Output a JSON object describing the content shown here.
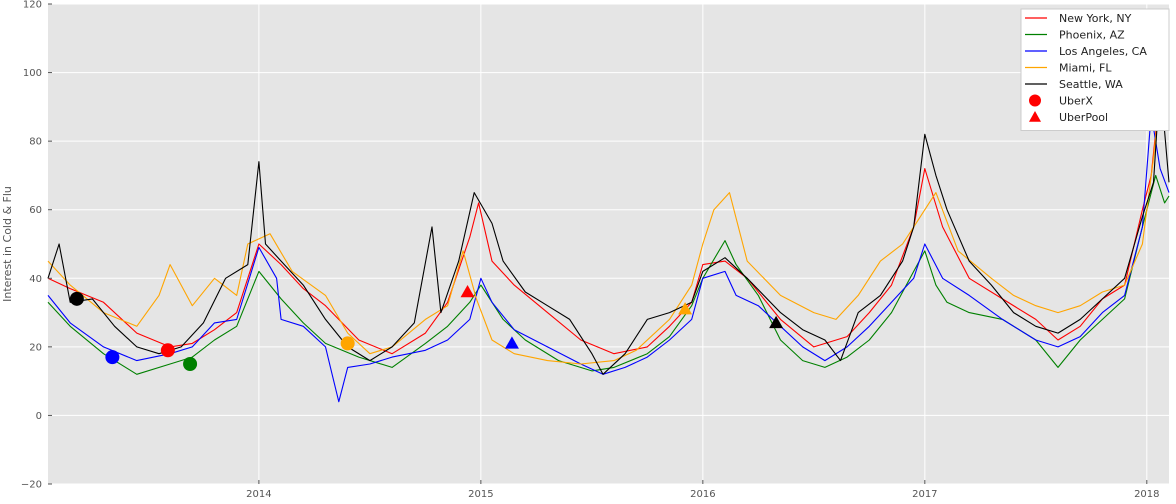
{
  "chart_data": {
    "type": "line",
    "title": "",
    "xlabel": "",
    "ylabel": "Interest in Cold & Flu",
    "xlim": [
      2013.05,
      2018.1
    ],
    "ylim": [
      -20,
      120
    ],
    "x_ticks": [
      2014,
      2015,
      2016,
      2017,
      2018
    ],
    "x_tick_labels": [
      "2014",
      "2015",
      "2016",
      "2017",
      "2018"
    ],
    "y_ticks": [
      -20,
      0,
      20,
      40,
      60,
      80,
      100,
      120
    ],
    "y_tick_labels": [
      "−20",
      "0",
      "20",
      "40",
      "60",
      "80",
      "100",
      "120"
    ],
    "grid": true,
    "legend_position": "top-right",
    "series": [
      {
        "name": "New York, NY",
        "color": "#ff0000",
        "points": [
          [
            2013.05,
            40
          ],
          [
            2013.15,
            37
          ],
          [
            2013.3,
            33
          ],
          [
            2013.45,
            24
          ],
          [
            2013.6,
            20
          ],
          [
            2013.7,
            21
          ],
          [
            2013.8,
            25
          ],
          [
            2013.9,
            30
          ],
          [
            2014.0,
            50
          ],
          [
            2014.1,
            44
          ],
          [
            2014.2,
            37
          ],
          [
            2014.3,
            32
          ],
          [
            2014.45,
            22
          ],
          [
            2014.6,
            18
          ],
          [
            2014.75,
            24
          ],
          [
            2014.85,
            33
          ],
          [
            2014.95,
            52
          ],
          [
            2014.99,
            62
          ],
          [
            2015.05,
            45
          ],
          [
            2015.15,
            38
          ],
          [
            2015.3,
            30
          ],
          [
            2015.45,
            22
          ],
          [
            2015.6,
            18
          ],
          [
            2015.75,
            20
          ],
          [
            2015.85,
            26
          ],
          [
            2015.95,
            33
          ],
          [
            2016.0,
            44
          ],
          [
            2016.1,
            45
          ],
          [
            2016.2,
            40
          ],
          [
            2016.35,
            28
          ],
          [
            2016.5,
            20
          ],
          [
            2016.65,
            23
          ],
          [
            2016.75,
            30
          ],
          [
            2016.85,
            38
          ],
          [
            2016.95,
            55
          ],
          [
            2017.0,
            72
          ],
          [
            2017.08,
            55
          ],
          [
            2017.2,
            40
          ],
          [
            2017.35,
            34
          ],
          [
            2017.5,
            28
          ],
          [
            2017.6,
            22
          ],
          [
            2017.7,
            26
          ],
          [
            2017.8,
            34
          ],
          [
            2017.9,
            38
          ],
          [
            2017.98,
            60
          ],
          [
            2018.02,
            70
          ],
          [
            2018.06,
            95
          ],
          [
            2018.1,
            100
          ]
        ]
      },
      {
        "name": "Phoenix, AZ",
        "color": "#008000",
        "points": [
          [
            2013.05,
            33
          ],
          [
            2013.15,
            26
          ],
          [
            2013.3,
            18
          ],
          [
            2013.45,
            12
          ],
          [
            2013.6,
            15
          ],
          [
            2013.7,
            17
          ],
          [
            2013.8,
            22
          ],
          [
            2013.9,
            26
          ],
          [
            2014.0,
            42
          ],
          [
            2014.1,
            34
          ],
          [
            2014.2,
            27
          ],
          [
            2014.3,
            21
          ],
          [
            2014.45,
            17
          ],
          [
            2014.6,
            14
          ],
          [
            2014.75,
            21
          ],
          [
            2014.85,
            26
          ],
          [
            2014.95,
            33
          ],
          [
            2015.0,
            38
          ],
          [
            2015.1,
            28
          ],
          [
            2015.2,
            22
          ],
          [
            2015.35,
            16
          ],
          [
            2015.5,
            13
          ],
          [
            2015.6,
            14
          ],
          [
            2015.75,
            18
          ],
          [
            2015.85,
            23
          ],
          [
            2015.95,
            32
          ],
          [
            2016.0,
            40
          ],
          [
            2016.1,
            51
          ],
          [
            2016.15,
            44
          ],
          [
            2016.25,
            35
          ],
          [
            2016.35,
            22
          ],
          [
            2016.45,
            16
          ],
          [
            2016.55,
            14
          ],
          [
            2016.65,
            17
          ],
          [
            2016.75,
            22
          ],
          [
            2016.85,
            30
          ],
          [
            2016.95,
            42
          ],
          [
            2017.0,
            48
          ],
          [
            2017.05,
            38
          ],
          [
            2017.1,
            33
          ],
          [
            2017.2,
            30
          ],
          [
            2017.35,
            28
          ],
          [
            2017.5,
            22
          ],
          [
            2017.6,
            14
          ],
          [
            2017.7,
            22
          ],
          [
            2017.8,
            28
          ],
          [
            2017.9,
            34
          ],
          [
            2017.98,
            55
          ],
          [
            2018.04,
            70
          ],
          [
            2018.08,
            62
          ],
          [
            2018.1,
            64
          ]
        ]
      },
      {
        "name": "Los Angeles, CA",
        "color": "#0000ff",
        "points": [
          [
            2013.05,
            35
          ],
          [
            2013.15,
            27
          ],
          [
            2013.3,
            20
          ],
          [
            2013.45,
            16
          ],
          [
            2013.6,
            18
          ],
          [
            2013.7,
            20
          ],
          [
            2013.8,
            27
          ],
          [
            2013.9,
            28
          ],
          [
            2014.0,
            49
          ],
          [
            2014.08,
            40
          ],
          [
            2014.1,
            28
          ],
          [
            2014.2,
            26
          ],
          [
            2014.3,
            20
          ],
          [
            2014.33,
            12
          ],
          [
            2014.36,
            4
          ],
          [
            2014.4,
            14
          ],
          [
            2014.5,
            15
          ],
          [
            2014.6,
            17
          ],
          [
            2014.75,
            19
          ],
          [
            2014.85,
            22
          ],
          [
            2014.95,
            28
          ],
          [
            2015.0,
            40
          ],
          [
            2015.05,
            33
          ],
          [
            2015.15,
            25
          ],
          [
            2015.3,
            20
          ],
          [
            2015.45,
            15
          ],
          [
            2015.55,
            12
          ],
          [
            2015.65,
            14
          ],
          [
            2015.75,
            17
          ],
          [
            2015.85,
            22
          ],
          [
            2015.95,
            28
          ],
          [
            2016.0,
            40
          ],
          [
            2016.1,
            42
          ],
          [
            2016.15,
            35
          ],
          [
            2016.25,
            32
          ],
          [
            2016.35,
            26
          ],
          [
            2016.45,
            20
          ],
          [
            2016.55,
            16
          ],
          [
            2016.65,
            20
          ],
          [
            2016.75,
            26
          ],
          [
            2016.85,
            33
          ],
          [
            2016.95,
            40
          ],
          [
            2017.0,
            50
          ],
          [
            2017.08,
            40
          ],
          [
            2017.2,
            35
          ],
          [
            2017.35,
            28
          ],
          [
            2017.5,
            22
          ],
          [
            2017.6,
            20
          ],
          [
            2017.7,
            23
          ],
          [
            2017.8,
            30
          ],
          [
            2017.9,
            35
          ],
          [
            2017.98,
            55
          ],
          [
            2018.02,
            88
          ],
          [
            2018.06,
            72
          ],
          [
            2018.1,
            65
          ]
        ]
      },
      {
        "name": "Miami, FL",
        "color": "#ffa500",
        "points": [
          [
            2013.05,
            45
          ],
          [
            2013.15,
            38
          ],
          [
            2013.3,
            30
          ],
          [
            2013.45,
            26
          ],
          [
            2013.55,
            35
          ],
          [
            2013.6,
            44
          ],
          [
            2013.7,
            32
          ],
          [
            2013.8,
            40
          ],
          [
            2013.9,
            35
          ],
          [
            2013.95,
            50
          ],
          [
            2014.05,
            53
          ],
          [
            2014.15,
            42
          ],
          [
            2014.3,
            35
          ],
          [
            2014.4,
            24
          ],
          [
            2014.5,
            18
          ],
          [
            2014.6,
            20
          ],
          [
            2014.75,
            28
          ],
          [
            2014.85,
            32
          ],
          [
            2014.92,
            48
          ],
          [
            2014.98,
            34
          ],
          [
            2015.05,
            22
          ],
          [
            2015.15,
            18
          ],
          [
            2015.3,
            16
          ],
          [
            2015.45,
            15
          ],
          [
            2015.6,
            16
          ],
          [
            2015.7,
            19
          ],
          [
            2015.85,
            28
          ],
          [
            2015.95,
            38
          ],
          [
            2016.0,
            50
          ],
          [
            2016.05,
            60
          ],
          [
            2016.12,
            65
          ],
          [
            2016.2,
            45
          ],
          [
            2016.35,
            35
          ],
          [
            2016.5,
            30
          ],
          [
            2016.6,
            28
          ],
          [
            2016.7,
            35
          ],
          [
            2016.8,
            45
          ],
          [
            2016.9,
            50
          ],
          [
            2016.95,
            55
          ],
          [
            2017.05,
            65
          ],
          [
            2017.15,
            48
          ],
          [
            2017.3,
            40
          ],
          [
            2017.4,
            35
          ],
          [
            2017.5,
            32
          ],
          [
            2017.6,
            30
          ],
          [
            2017.7,
            32
          ],
          [
            2017.8,
            36
          ],
          [
            2017.9,
            38
          ],
          [
            2017.98,
            50
          ],
          [
            2018.03,
            75
          ],
          [
            2018.07,
            100
          ],
          [
            2018.1,
            100
          ]
        ]
      },
      {
        "name": "Seattle, WA",
        "color": "#000000",
        "points": [
          [
            2013.05,
            40
          ],
          [
            2013.1,
            50
          ],
          [
            2013.15,
            33
          ],
          [
            2013.25,
            34
          ],
          [
            2013.35,
            26
          ],
          [
            2013.45,
            20
          ],
          [
            2013.55,
            18
          ],
          [
            2013.65,
            20
          ],
          [
            2013.75,
            27
          ],
          [
            2013.85,
            40
          ],
          [
            2013.95,
            44
          ],
          [
            2014.0,
            74
          ],
          [
            2014.03,
            50
          ],
          [
            2014.1,
            45
          ],
          [
            2014.2,
            38
          ],
          [
            2014.3,
            28
          ],
          [
            2014.4,
            20
          ],
          [
            2014.5,
            16
          ],
          [
            2014.6,
            20
          ],
          [
            2014.7,
            27
          ],
          [
            2014.78,
            55
          ],
          [
            2014.82,
            30
          ],
          [
            2014.9,
            45
          ],
          [
            2014.97,
            65
          ],
          [
            2015.05,
            56
          ],
          [
            2015.1,
            45
          ],
          [
            2015.2,
            36
          ],
          [
            2015.3,
            32
          ],
          [
            2015.4,
            28
          ],
          [
            2015.5,
            18
          ],
          [
            2015.55,
            12
          ],
          [
            2015.65,
            18
          ],
          [
            2015.75,
            28
          ],
          [
            2015.85,
            30
          ],
          [
            2015.95,
            33
          ],
          [
            2016.0,
            42
          ],
          [
            2016.1,
            46
          ],
          [
            2016.2,
            40
          ],
          [
            2016.35,
            30
          ],
          [
            2016.45,
            25
          ],
          [
            2016.55,
            22
          ],
          [
            2016.62,
            16
          ],
          [
            2016.7,
            30
          ],
          [
            2016.8,
            35
          ],
          [
            2016.9,
            45
          ],
          [
            2016.95,
            55
          ],
          [
            2017.0,
            82
          ],
          [
            2017.05,
            70
          ],
          [
            2017.1,
            60
          ],
          [
            2017.2,
            45
          ],
          [
            2017.3,
            38
          ],
          [
            2017.4,
            30
          ],
          [
            2017.5,
            26
          ],
          [
            2017.6,
            24
          ],
          [
            2017.7,
            28
          ],
          [
            2017.8,
            34
          ],
          [
            2017.9,
            40
          ],
          [
            2017.98,
            58
          ],
          [
            2018.03,
            68
          ],
          [
            2018.06,
            98
          ],
          [
            2018.1,
            68
          ]
        ]
      }
    ],
    "markers": [
      {
        "kind": "UberX",
        "shape": "circle",
        "x": 2013.18,
        "y": 34,
        "color": "#000000"
      },
      {
        "kind": "UberX",
        "shape": "circle",
        "x": 2013.34,
        "y": 17,
        "color": "#0000ff"
      },
      {
        "kind": "UberX",
        "shape": "circle",
        "x": 2013.59,
        "y": 19,
        "color": "#ff0000"
      },
      {
        "kind": "UberX",
        "shape": "circle",
        "x": 2013.69,
        "y": 15,
        "color": "#008000"
      },
      {
        "kind": "UberX",
        "shape": "circle",
        "x": 2014.4,
        "y": 21,
        "color": "#ffa500"
      },
      {
        "kind": "UberPool",
        "shape": "triangle",
        "x": 2014.94,
        "y": 36,
        "color": "#ff0000"
      },
      {
        "kind": "UberPool",
        "shape": "triangle",
        "x": 2015.14,
        "y": 21,
        "color": "#0000ff"
      },
      {
        "kind": "UberPool",
        "shape": "triangle",
        "x": 2015.92,
        "y": 31,
        "color": "#ffa500"
      },
      {
        "kind": "UberPool",
        "shape": "triangle",
        "x": 2016.33,
        "y": 27,
        "color": "#000000"
      }
    ],
    "legend": [
      {
        "label": "New York, NY",
        "type": "line",
        "color": "#ff0000"
      },
      {
        "label": "Phoenix, AZ",
        "type": "line",
        "color": "#008000"
      },
      {
        "label": "Los Angeles, CA",
        "type": "line",
        "color": "#0000ff"
      },
      {
        "label": "Miami, FL",
        "type": "line",
        "color": "#ffa500"
      },
      {
        "label": "Seattle, WA",
        "type": "line",
        "color": "#000000"
      },
      {
        "label": "UberX",
        "type": "circle",
        "color": "#ff0000"
      },
      {
        "label": "UberPool",
        "type": "triangle",
        "color": "#ff0000"
      }
    ],
    "background_color": "#e5e5e5",
    "grid_color": "#ffffff"
  }
}
